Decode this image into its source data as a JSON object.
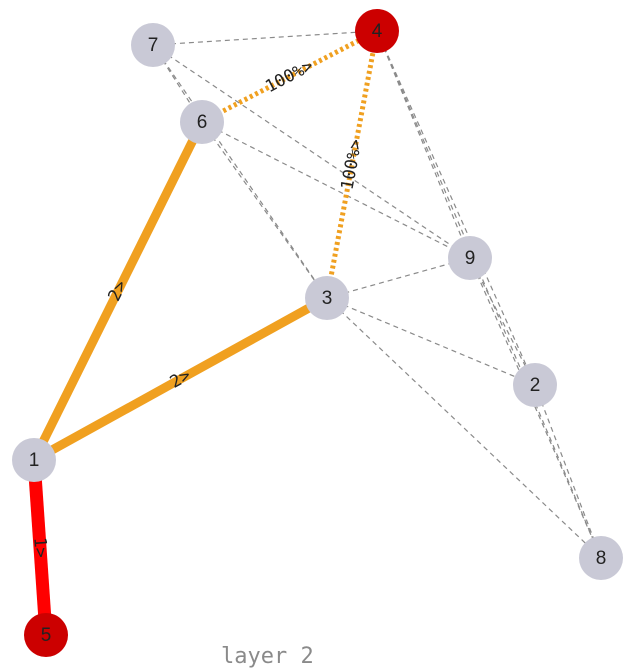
{
  "colors": {
    "node_default": "#c9c9d6",
    "node_highlight": "#cc0000",
    "edge_orange": "#f0a020",
    "edge_red": "#ff0000",
    "edge_dashed": "#8a8a8a"
  },
  "caption": "layer 2",
  "nodes": [
    {
      "id": "1",
      "label": "1",
      "highlight": false
    },
    {
      "id": "2",
      "label": "2",
      "highlight": false
    },
    {
      "id": "3",
      "label": "3",
      "highlight": false
    },
    {
      "id": "4",
      "label": "4",
      "highlight": true
    },
    {
      "id": "5",
      "label": "5",
      "highlight": true
    },
    {
      "id": "6",
      "label": "6",
      "highlight": false
    },
    {
      "id": "7",
      "label": "7",
      "highlight": false
    },
    {
      "id": "8",
      "label": "8",
      "highlight": false
    },
    {
      "id": "9",
      "label": "9",
      "highlight": false
    }
  ],
  "highlighted_edges": [
    {
      "from": "1",
      "to": "5",
      "label": "1>",
      "color": "red",
      "style": "solid"
    },
    {
      "from": "1",
      "to": "6",
      "label": "2>",
      "color": "orange",
      "style": "solid"
    },
    {
      "from": "1",
      "to": "3",
      "label": "2>",
      "color": "orange",
      "style": "solid"
    },
    {
      "from": "6",
      "to": "4",
      "label": "100%>",
      "color": "orange",
      "style": "dotted"
    },
    {
      "from": "3",
      "to": "4",
      "label": "100%>",
      "color": "orange",
      "style": "dotted"
    }
  ],
  "dashed_edges": [
    [
      "7",
      "4"
    ],
    [
      "7",
      "6"
    ],
    [
      "7",
      "9"
    ],
    [
      "7",
      "3"
    ],
    [
      "6",
      "3"
    ],
    [
      "6",
      "9"
    ],
    [
      "4",
      "9"
    ],
    [
      "4",
      "2"
    ],
    [
      "4",
      "8"
    ],
    [
      "3",
      "9"
    ],
    [
      "3",
      "2"
    ],
    [
      "3",
      "8"
    ],
    [
      "9",
      "2"
    ],
    [
      "9",
      "8"
    ],
    [
      "2",
      "8"
    ]
  ]
}
